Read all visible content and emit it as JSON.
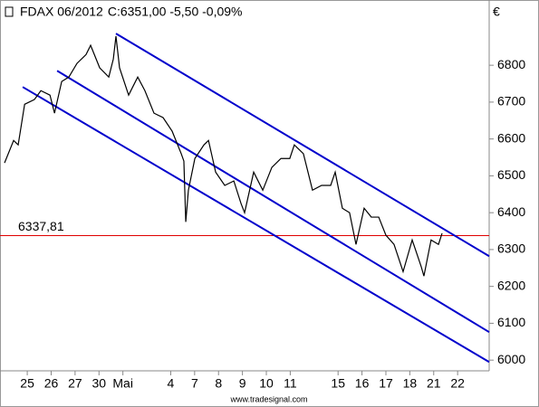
{
  "chart_data": {
    "type": "line",
    "title": "FDAX 06/2012",
    "subtitle": "C:6351,00 -5,50 -0,09%",
    "subtitle_color": "#e00000",
    "axis_unit": "€",
    "source": "www.tradesignal.com",
    "color": "#000000",
    "x": [
      -0.95,
      -0.57,
      -0.38,
      -0.11,
      0.3,
      0.57,
      0.95,
      1.14,
      1.44,
      1.74,
      2.08,
      2.46,
      2.65,
      3.03,
      3.41,
      3.6,
      3.71,
      3.86,
      4.24,
      4.62,
      4.92,
      5.3,
      5.68,
      6.06,
      6.44,
      6.55,
      6.63,
      6.74,
      7.01,
      7.39,
      7.58,
      7.88,
      8.26,
      8.64,
      8.94,
      9.09,
      9.47,
      9.85,
      10.23,
      10.61,
      10.98,
      11.17,
      11.55,
      11.93,
      12.31,
      12.69,
      12.88,
      13.18,
      13.48,
      13.75,
      14.09,
      14.39,
      14.7,
      15.0,
      15.34,
      15.72,
      16.1,
      16.48,
      16.59,
      16.89,
      17.2,
      17.35
    ],
    "values": [
      6535,
      6596,
      6584,
      6694,
      6707,
      6731,
      6719,
      6670,
      6756,
      6768,
      6805,
      6829,
      6854,
      6793,
      6768,
      6817,
      6879,
      6793,
      6719,
      6768,
      6731,
      6670,
      6658,
      6621,
      6560,
      6540,
      6375,
      6461,
      6547,
      6584,
      6596,
      6510,
      6474,
      6486,
      6425,
      6400,
      6510,
      6461,
      6523,
      6547,
      6547,
      6584,
      6560,
      6461,
      6474,
      6474,
      6510,
      6412,
      6400,
      6314,
      6412,
      6388,
      6388,
      6339,
      6314,
      6240,
      6326,
      6253,
      6228,
      6326,
      6314,
      6344
    ],
    "xlim": [
      -1.14,
      19.32
    ],
    "ylim": [
      5971,
      6977
    ],
    "yticks": [
      6000,
      6100,
      6200,
      6300,
      6400,
      6500,
      6600,
      6700,
      6800
    ],
    "xticks": [
      {
        "value": 0,
        "label": "25"
      },
      {
        "value": 1,
        "label": "26"
      },
      {
        "value": 2,
        "label": "27"
      },
      {
        "value": 3,
        "label": "30"
      },
      {
        "value": 4,
        "label": "Mai"
      },
      {
        "value": 6,
        "label": "4"
      },
      {
        "value": 7,
        "label": "7"
      },
      {
        "value": 8,
        "label": "8"
      },
      {
        "value": 9,
        "label": "9"
      },
      {
        "value": 10,
        "label": "10"
      },
      {
        "value": 11,
        "label": "11"
      },
      {
        "value": 13,
        "label": "15"
      },
      {
        "value": 14,
        "label": "16"
      },
      {
        "value": 15,
        "label": "17"
      },
      {
        "value": 16,
        "label": "18"
      },
      {
        "value": 17,
        "label": "21"
      },
      {
        "value": 18,
        "label": "22"
      }
    ],
    "reference_line": {
      "value": 6337.81,
      "label": "6337,81",
      "color": "#e00000"
    },
    "trend_lines": [
      {
        "x": [
          3.71,
          19.32
        ],
        "y": [
          6886,
          6282
        ],
        "color": "#0000cc"
      },
      {
        "x": [
          1.25,
          19.32
        ],
        "y": [
          6785,
          6076
        ],
        "color": "#0000cc"
      },
      {
        "x": [
          -0.19,
          19.32
        ],
        "y": [
          6741,
          5995
        ],
        "color": "#0000cc"
      }
    ],
    "grid": false
  }
}
